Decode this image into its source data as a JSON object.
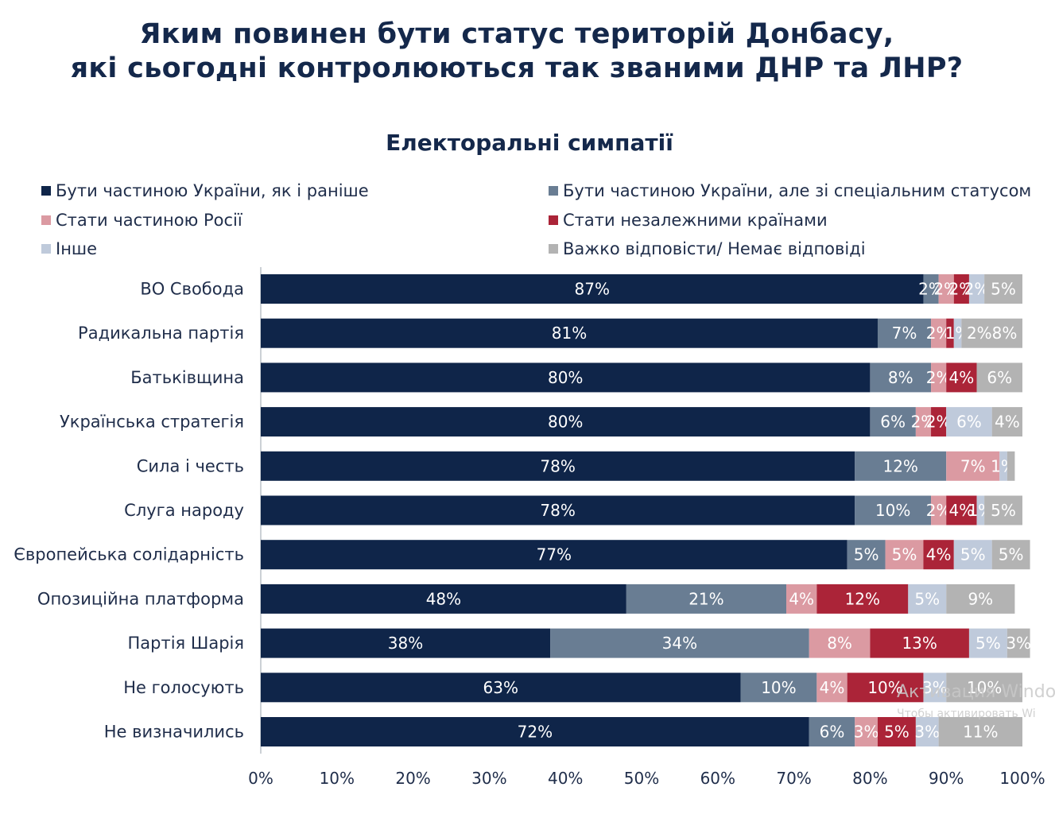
{
  "chart_data": {
    "type": "bar",
    "orientation": "horizontal-stacked-100",
    "title": "Яким повинен бути статус територій Донбасу, які сьогодні контролюються так званими ДНР та ЛНР?",
    "subtitle": "Електоральні симпатії",
    "xlim": [
      0,
      100
    ],
    "xticks": [
      "0%",
      "10%",
      "20%",
      "30%",
      "40%",
      "50%",
      "60%",
      "70%",
      "80%",
      "90%",
      "100%"
    ],
    "legend_position": "top",
    "categories": [
      "ВО Свобода",
      "Радикальна партія",
      "Батьківщина",
      "Українська стратегія",
      "Сила і честь",
      "Слуга народу",
      "Європейська солідарність",
      "Опозиційна платформа",
      "Партія Шарія",
      "Не голосують",
      "Не визначились"
    ],
    "series": [
      {
        "name": "Бути частиною України, як і раніше",
        "color": "#0f2549",
        "label_color": "#ffffff",
        "values": [
          87,
          81,
          80,
          80,
          78,
          78,
          77,
          48,
          38,
          63,
          72
        ]
      },
      {
        "name": "Бути частиною України, але зі спеціальним статусом",
        "color": "#697d93",
        "label_color": "#ffffff",
        "values": [
          2,
          7,
          8,
          6,
          12,
          10,
          5,
          21,
          34,
          10,
          6
        ]
      },
      {
        "name": "Стати частиною Росії",
        "color": "#db9aa2",
        "label_color": "#ffffff",
        "values": [
          2,
          2,
          2,
          2,
          7,
          2,
          5,
          4,
          8,
          4,
          3
        ]
      },
      {
        "name": "Стати незалежними країнами",
        "color": "#ab2438",
        "label_color": "#ffffff",
        "values": [
          2,
          1,
          4,
          2,
          0,
          4,
          4,
          12,
          13,
          10,
          5
        ]
      },
      {
        "name": "Інше",
        "color": "#bfcadb",
        "label_color": "#ffffff",
        "values": [
          2,
          1,
          0,
          6,
          1,
          1,
          5,
          5,
          5,
          3,
          3
        ]
      },
      {
        "name": "Важко відповісти/ Немає відповіді",
        "color": "#b3b3b3",
        "label_color": "#ffffff",
        "values": [
          5,
          8,
          6,
          4,
          1,
          5,
          5,
          9,
          3,
          10,
          11
        ]
      }
    ],
    "value_labels": [
      [
        "87%",
        "2%",
        "2%",
        "2%",
        "2%",
        "5%"
      ],
      [
        "81%",
        "7%",
        "2%",
        "",
        "1%",
        "2%8%"
      ],
      [
        "80%",
        "8%",
        "2%",
        "4%",
        "",
        "6%"
      ],
      [
        "80%",
        "6%",
        "2%",
        "2%",
        "6%",
        "4%"
      ],
      [
        "78%",
        "12%",
        "7%",
        "",
        "1%",
        ""
      ],
      [
        "78%",
        "10%",
        "2%",
        "4%",
        "1%",
        "5%"
      ],
      [
        "77%",
        "5%",
        "5%",
        "4%",
        "5%",
        "5%"
      ],
      [
        "48%",
        "21%",
        "4%",
        "12%",
        "5%",
        "9%"
      ],
      [
        "38%",
        "34%",
        "8%",
        "13%",
        "5%",
        "3%"
      ],
      [
        "63%",
        "10%",
        "4%",
        "10%",
        "3%",
        "10%"
      ],
      [
        "72%",
        "6%",
        "3%",
        "5%",
        "3%",
        "11%"
      ]
    ]
  },
  "legend_rows": [
    [
      0,
      1
    ],
    [
      2,
      3
    ],
    [
      4,
      5
    ]
  ],
  "watermark": {
    "line1": "Активация Windo",
    "line2": "Чтобы активировать Wi"
  }
}
